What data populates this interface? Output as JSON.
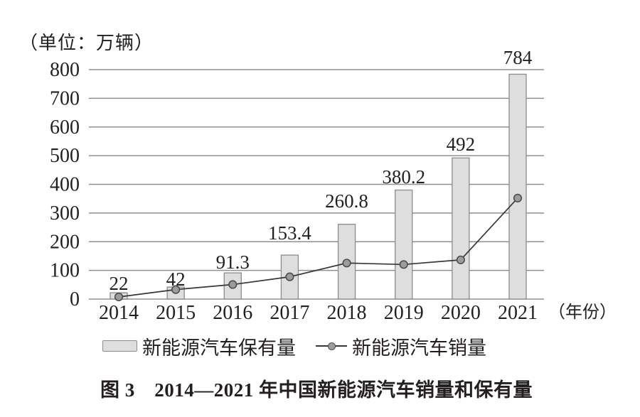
{
  "chart_data": {
    "type": "combo-bar-line",
    "unit_label": "（单位：万辆）",
    "xlabel": "（年份）",
    "categories": [
      "2014",
      "2015",
      "2016",
      "2017",
      "2018",
      "2019",
      "2020",
      "2021"
    ],
    "y_ticks": [
      "0",
      "100",
      "200",
      "300",
      "400",
      "500",
      "600",
      "700",
      "800"
    ],
    "ylim": [
      0,
      800
    ],
    "grid": true,
    "legend_position": "bottom",
    "series": [
      {
        "name": "新能源汽车保有量",
        "type": "bar",
        "values": [
          22,
          42,
          91.3,
          153.4,
          260.8,
          380.2,
          492,
          784
        ],
        "data_labels": [
          "22",
          "42",
          "91.3",
          "153.4",
          "260.8",
          "380.2",
          "492",
          "784"
        ],
        "fill": "#dedede",
        "stroke": "#8c8c8c"
      },
      {
        "name": "新能源汽车销量",
        "type": "line",
        "values": [
          7.5,
          33.1,
          50.7,
          77.7,
          125.6,
          120.6,
          136.7,
          352.1
        ],
        "line_color": "#3a3632",
        "marker_fill": "#9c9c9c",
        "marker_stroke": "#4d4d4d"
      }
    ],
    "colors": {
      "text": "#231f20",
      "gridline": "#909090"
    }
  },
  "caption": {
    "text": "图 3　2014—2021 年中国新能源汽车销量和保有量"
  }
}
